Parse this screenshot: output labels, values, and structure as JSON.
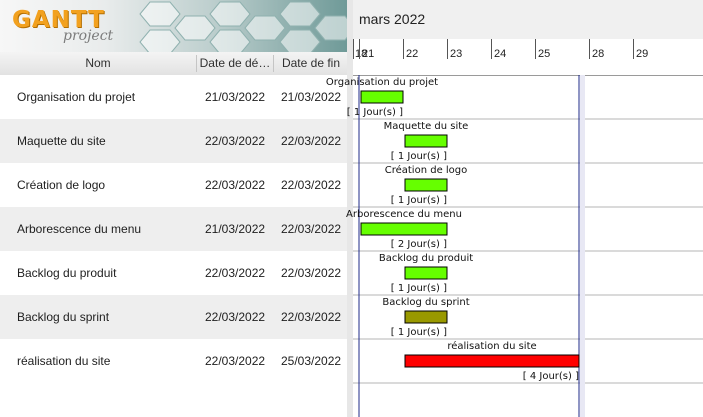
{
  "app": {
    "logo_main": "GANTT",
    "logo_sub": "project"
  },
  "columns": {
    "name": "Nom",
    "start": "Date de dé…",
    "end": "Date de fin"
  },
  "tasks": [
    {
      "name": "Organisation du projet",
      "start": "21/03/2022",
      "end": "21/03/2022",
      "label": "Organisation du projet",
      "duration": "[ 1 Jour(s) ]",
      "color": "#66ff00",
      "start_day": 21,
      "days": 1
    },
    {
      "name": "Maquette du site",
      "start": "22/03/2022",
      "end": "22/03/2022",
      "label": "Maquette du site",
      "duration": "[ 1 Jour(s) ]",
      "color": "#66ff00",
      "start_day": 22,
      "days": 1
    },
    {
      "name": "Création de logo",
      "start": "22/03/2022",
      "end": "22/03/2022",
      "label": "Création de logo",
      "duration": "[ 1 Jour(s) ]",
      "color": "#66ff00",
      "start_day": 22,
      "days": 1
    },
    {
      "name": "Arborescence du menu",
      "start": "21/03/2022",
      "end": "22/03/2022",
      "label": "Arborescence du menu",
      "duration": "[ 2 Jour(s) ]",
      "color": "#66ff00",
      "start_day": 21,
      "days": 2
    },
    {
      "name": "Backlog du produit",
      "start": "22/03/2022",
      "end": "22/03/2022",
      "label": "Backlog du produit",
      "duration": "[ 1 Jour(s) ]",
      "color": "#66ff00",
      "start_day": 22,
      "days": 1
    },
    {
      "name": "Backlog du sprint",
      "start": "22/03/2022",
      "end": "22/03/2022",
      "label": "Backlog du sprint",
      "duration": "[ 1 Jour(s) ]",
      "color": "#999900",
      "start_day": 22,
      "days": 1
    },
    {
      "name": "réalisation du site",
      "start": "22/03/2022",
      "end": "25/03/2022",
      "label": "réalisation du site",
      "duration": "[ 4 Jour(s) ]",
      "color": "#ff0000",
      "start_day": 22,
      "days": 4
    }
  ],
  "timeline": {
    "month": "mars 2022",
    "day_labels": [
      "18",
      "21",
      "22",
      "23",
      "24",
      "25",
      "28",
      "29"
    ],
    "day_values": [
      18,
      21,
      22,
      23,
      24,
      25,
      28,
      29
    ],
    "project_start_day": 21,
    "project_end_day": 26
  },
  "colors": {
    "bar_border": "#000000",
    "row_line": "#b5b5b5",
    "project_bound": "#1f2b8a"
  }
}
